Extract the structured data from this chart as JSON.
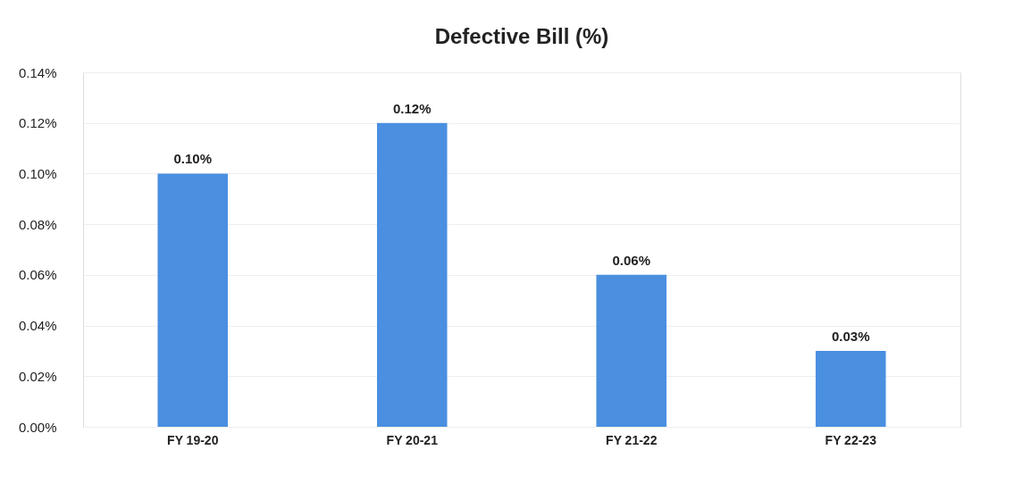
{
  "chart_data": {
    "type": "bar",
    "title": "Defective Bill (%)",
    "categories": [
      "FY 19-20",
      "FY 20-21",
      "FY 21-22",
      "FY 22-23"
    ],
    "values": [
      0.1,
      0.12,
      0.06,
      0.03
    ],
    "value_labels": [
      "0.10%",
      "0.12%",
      "0.06%",
      "0.03%"
    ],
    "color": "#4a8fe0",
    "ylim": [
      0,
      0.14
    ],
    "yticks": [
      {
        "value": 0,
        "label": "0.00%"
      },
      {
        "value": 0.02,
        "label": "0.02%"
      },
      {
        "value": 0.04,
        "label": "0.04%"
      },
      {
        "value": 0.06,
        "label": "0.06%"
      },
      {
        "value": 0.08,
        "label": "0.08%"
      },
      {
        "value": 0.1,
        "label": "0.10%"
      },
      {
        "value": 0.12,
        "label": "0.12%"
      },
      {
        "value": 0.14,
        "label": "0.14%"
      }
    ],
    "grid": "y"
  }
}
